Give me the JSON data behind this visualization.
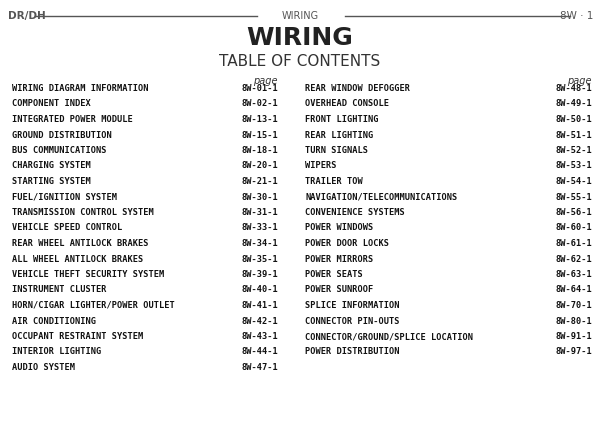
{
  "title": "WIRING",
  "subtitle": "TABLE OF CONTENTS",
  "header_left": "DR/DH",
  "header_center": "WIRING",
  "header_right": "8W · 1",
  "page_label": "page",
  "background_color": "#ffffff",
  "text_color": "#333333",
  "header_color": "#555555",
  "left_entries": [
    [
      "WIRING DIAGRAM INFORMATION",
      "8W-01-1"
    ],
    [
      "COMPONENT INDEX",
      "8W-02-1"
    ],
    [
      "INTEGRATED POWER MODULE",
      "8W-13-1"
    ],
    [
      "GROUND DISTRIBUTION",
      "8W-15-1"
    ],
    [
      "BUS COMMUNICATIONS",
      "8W-18-1"
    ],
    [
      "CHARGING SYSTEM",
      "8W-20-1"
    ],
    [
      "STARTING SYSTEM",
      "8W-21-1"
    ],
    [
      "FUEL/IGNITION SYSTEM",
      "8W-30-1"
    ],
    [
      "TRANSMISSION CONTROL SYSTEM",
      "8W-31-1"
    ],
    [
      "VEHICLE SPEED CONTROL",
      "8W-33-1"
    ],
    [
      "REAR WHEEL ANTILOCK BRAKES",
      "8W-34-1"
    ],
    [
      "ALL WHEEL ANTILOCK BRAKES",
      "8W-35-1"
    ],
    [
      "VEHICLE THEFT SECURITY SYSTEM",
      "8W-39-1"
    ],
    [
      "INSTRUMENT CLUSTER",
      "8W-40-1"
    ],
    [
      "HORN/CIGAR LIGHTER/POWER OUTLET",
      "8W-41-1"
    ],
    [
      "AIR CONDITIONING",
      "8W-42-1"
    ],
    [
      "OCCUPANT RESTRAINT SYSTEM",
      "8W-43-1"
    ],
    [
      "INTERIOR LIGHTING",
      "8W-44-1"
    ],
    [
      "AUDIO SYSTEM",
      "8W-47-1"
    ]
  ],
  "right_entries": [
    [
      "REAR WINDOW DEFOGGER",
      "8W-48-1"
    ],
    [
      "OVERHEAD CONSOLE",
      "8W-49-1"
    ],
    [
      "FRONT LIGHTING",
      "8W-50-1"
    ],
    [
      "REAR LIGHTING",
      "8W-51-1"
    ],
    [
      "TURN SIGNALS",
      "8W-52-1"
    ],
    [
      "WIPERS",
      "8W-53-1"
    ],
    [
      "TRAILER TOW",
      "8W-54-1"
    ],
    [
      "NAVIGATION/TELECOMMUNICATIONS",
      "8W-55-1"
    ],
    [
      "CONVENIENCE SYSTEMS",
      "8W-56-1"
    ],
    [
      "POWER WINDOWS",
      "8W-60-1"
    ],
    [
      "POWER DOOR LOCKS",
      "8W-61-1"
    ],
    [
      "POWER MIRRORS",
      "8W-62-1"
    ],
    [
      "POWER SEATS",
      "8W-63-1"
    ],
    [
      "POWER SUNROOF",
      "8W-64-1"
    ],
    [
      "SPLICE INFORMATION",
      "8W-70-1"
    ],
    [
      "CONNECTOR PIN-OUTS",
      "8W-80-1"
    ],
    [
      "CONNECTOR/GROUND/SPLICE LOCATION",
      "8W-91-1"
    ],
    [
      "POWER DISTRIBUTION",
      "8W-97-1"
    ]
  ]
}
